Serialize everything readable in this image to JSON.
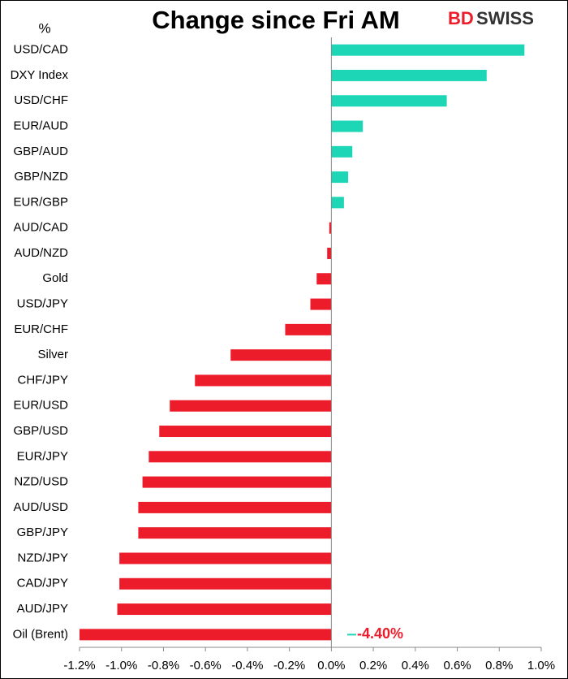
{
  "chart_data": {
    "type": "barh",
    "title": "Change since Fri AM",
    "unit_label": "%",
    "brand": [
      "BD",
      "SWISS"
    ],
    "categories": [
      "USD/CAD",
      "DXY Index",
      "USD/CHF",
      "EUR/AUD",
      "GBP/AUD",
      "GBP/NZD",
      "EUR/GBP",
      "AUD/CAD",
      "AUD/NZD",
      "Gold",
      "USD/JPY",
      "EUR/CHF",
      "Silver",
      "CHF/JPY",
      "EUR/USD",
      "GBP/USD",
      "EUR/JPY",
      "NZD/USD",
      "AUD/USD",
      "GBP/JPY",
      "NZD/JPY",
      "CAD/JPY",
      "AUD/JPY",
      "Oil (Brent)"
    ],
    "values": [
      0.92,
      0.74,
      0.55,
      0.15,
      0.1,
      0.08,
      0.06,
      -0.01,
      -0.02,
      -0.07,
      -0.1,
      -0.22,
      -0.48,
      -0.65,
      -0.77,
      -0.82,
      -0.87,
      -0.9,
      -0.92,
      -0.92,
      -1.01,
      -1.01,
      -1.02,
      -4.4
    ],
    "value_labels": [
      null,
      null,
      null,
      null,
      null,
      null,
      null,
      null,
      null,
      null,
      null,
      null,
      null,
      null,
      null,
      null,
      null,
      null,
      null,
      null,
      null,
      null,
      null,
      "-4.40%"
    ],
    "positive_color": "#1dd6b6",
    "negative_color": "#ec1c2a",
    "xlim": [
      -1.2,
      1.0
    ],
    "xticks": [
      {
        "value": -1.2,
        "label": "-1.2%"
      },
      {
        "value": -1.0,
        "label": "-1.0%"
      },
      {
        "value": -0.8,
        "label": "-0.8%"
      },
      {
        "value": -0.6,
        "label": "-0.6%"
      },
      {
        "value": -0.4,
        "label": "-0.4%"
      },
      {
        "value": -0.2,
        "label": "-0.2%"
      },
      {
        "value": 0.0,
        "label": "0.0%"
      },
      {
        "value": 0.2,
        "label": "0.2%"
      },
      {
        "value": 0.4,
        "label": "0.4%"
      },
      {
        "value": 0.6,
        "label": "0.6%"
      },
      {
        "value": 0.8,
        "label": "0.8%"
      },
      {
        "value": 1.0,
        "label": "1.0%"
      }
    ],
    "grid": false
  }
}
